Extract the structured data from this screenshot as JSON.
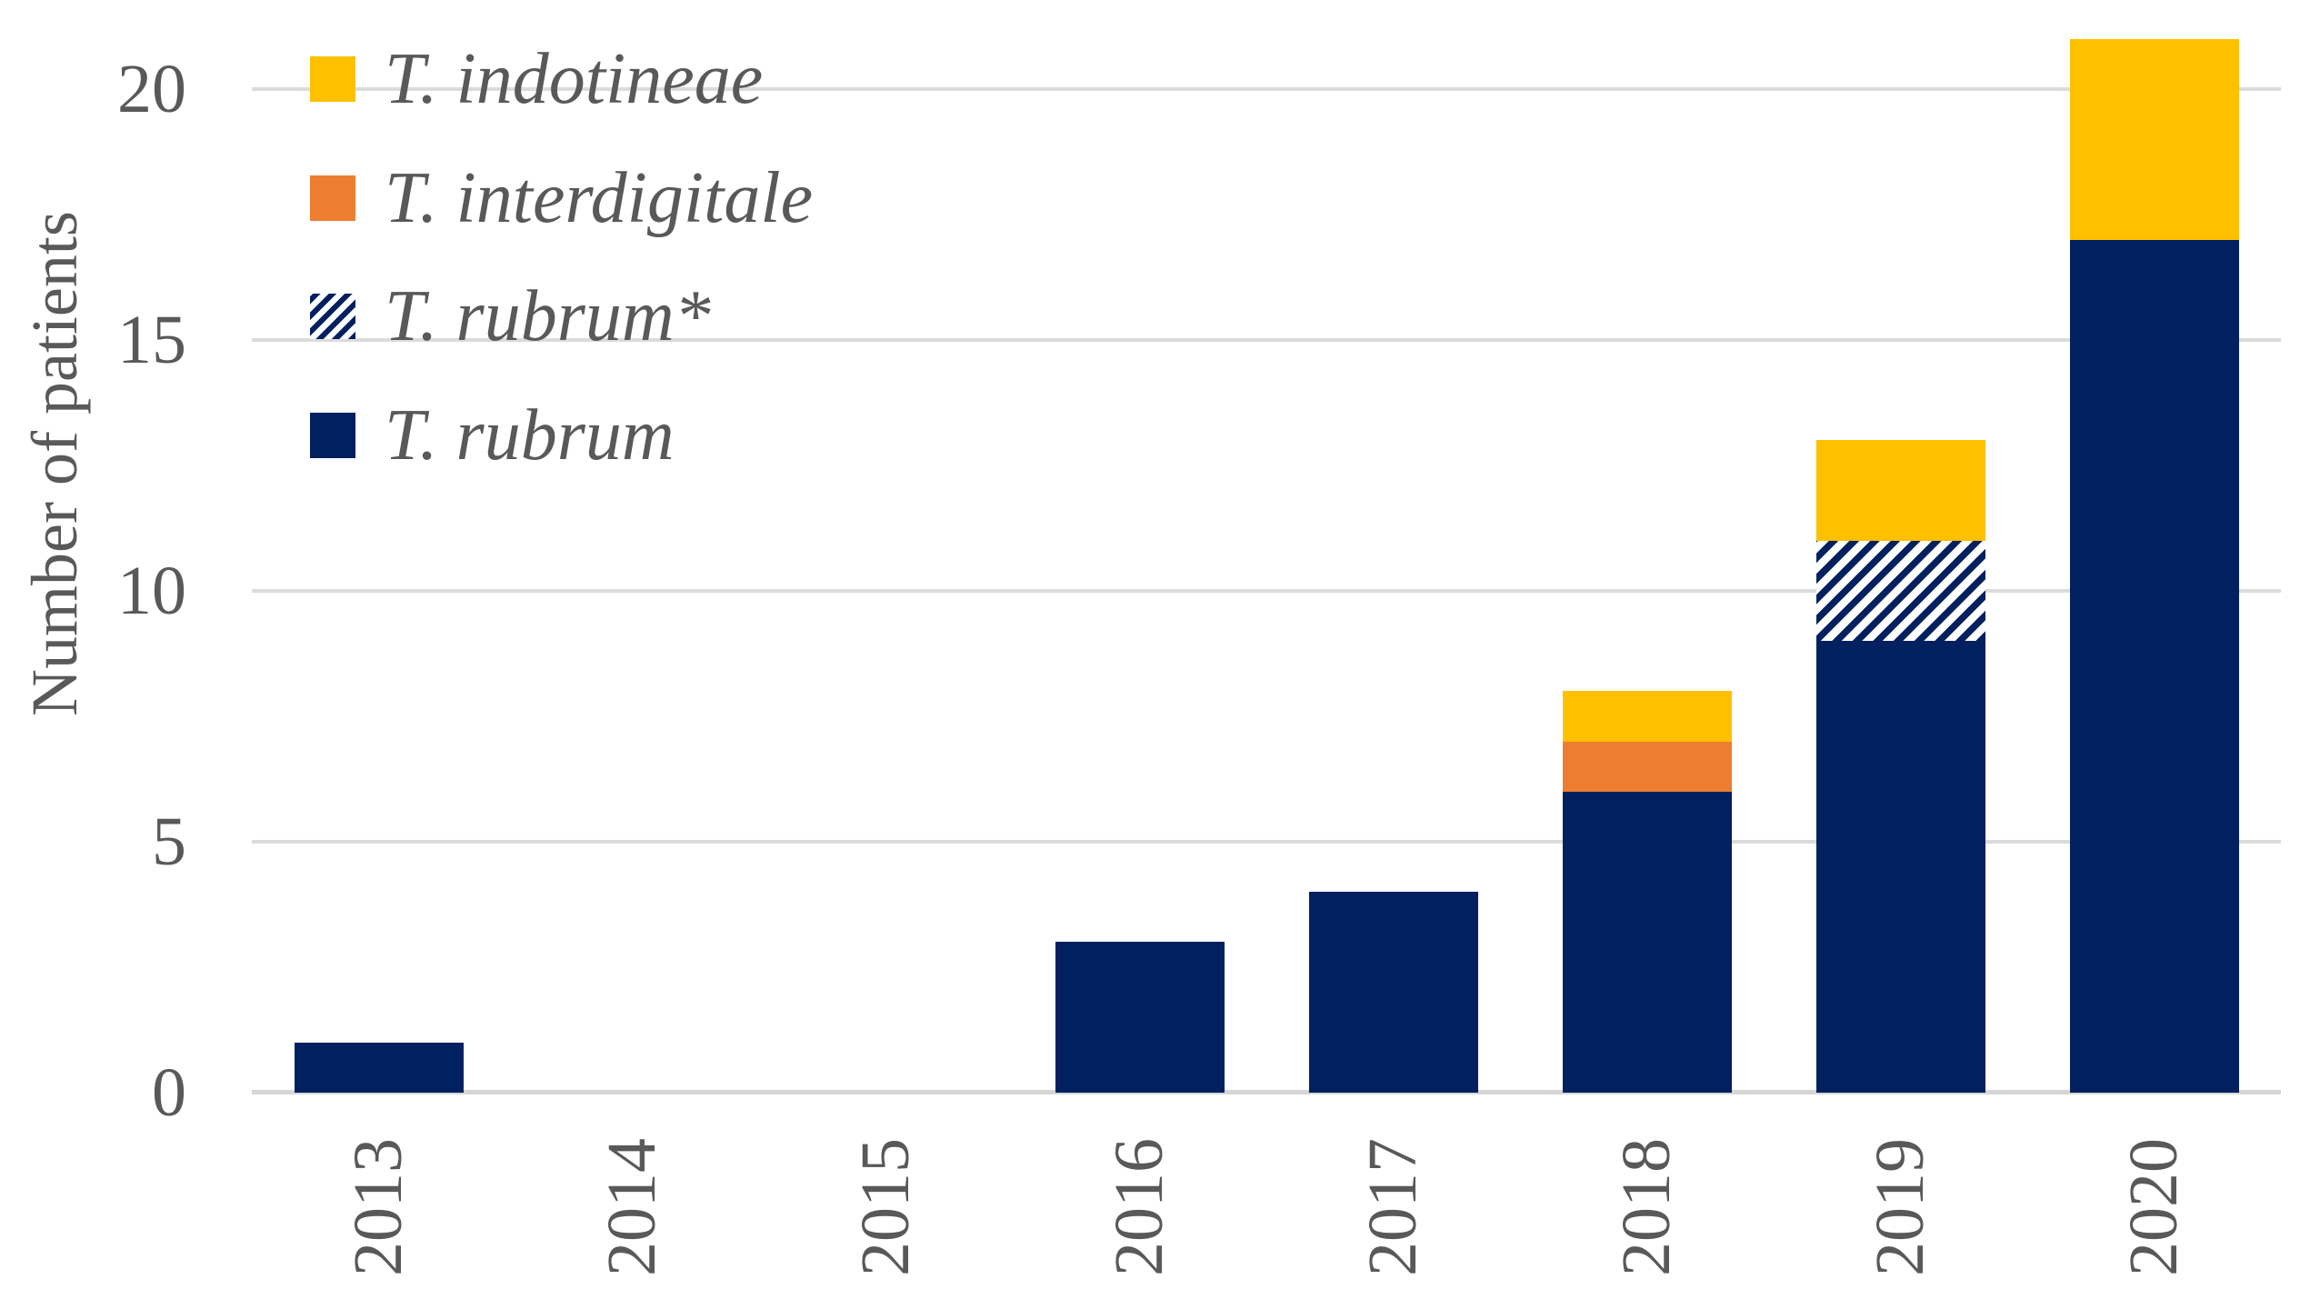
{
  "chart_data": {
    "type": "bar",
    "stacked": true,
    "title": "",
    "xlabel": "",
    "ylabel": "Number of patients",
    "categories": [
      "2013",
      "2014",
      "2015",
      "2016",
      "2017",
      "2018",
      "2019",
      "2020"
    ],
    "series": [
      {
        "name": "T. rubrum",
        "swatch": "solid",
        "color": "#002060",
        "values": [
          1,
          0,
          0,
          3,
          4,
          6,
          9,
          17
        ]
      },
      {
        "name": "T. rubrum*",
        "swatch": "hatch",
        "color": "#002060",
        "hatch_bg": "#FFFFFF",
        "values": [
          0,
          0,
          0,
          0,
          0,
          0,
          2,
          0
        ]
      },
      {
        "name": "T. interdigitale",
        "swatch": "solid",
        "color": "#ED7D31",
        "values": [
          0,
          0,
          0,
          0,
          0,
          1,
          0,
          0
        ]
      },
      {
        "name": "T. indotineae",
        "swatch": "solid",
        "color": "#FFC000",
        "values": [
          0,
          0,
          0,
          0,
          0,
          1,
          2,
          4
        ]
      }
    ],
    "totals": [
      1,
      0,
      0,
      3,
      4,
      8,
      13,
      21
    ],
    "y_ticks": [
      0,
      5,
      10,
      15,
      20
    ],
    "ylim": [
      0,
      21
    ],
    "grid": "horizontal",
    "legend_position": "inside-top-left",
    "legend_order_top_to_bottom": [
      "T. indotineae",
      "T. interdigitale",
      "T. rubrum*",
      "T. rubrum"
    ]
  },
  "style_colors": {
    "text": "#595959",
    "gridline": "#DBDBDB",
    "axis_line": "#D6D6D6",
    "background": "#FFFFFF"
  }
}
